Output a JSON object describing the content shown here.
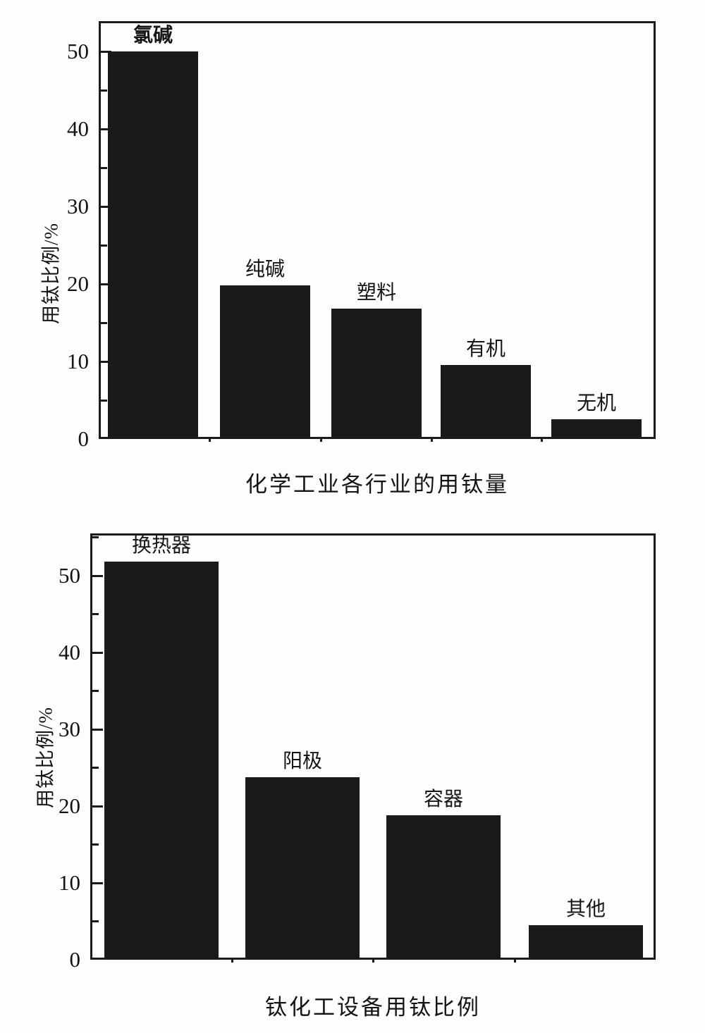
{
  "page": {
    "background": "#fdfdfb",
    "bar_color": "#1c1a18",
    "axis_color": "#1b1b1b"
  },
  "chart_data": [
    {
      "type": "bar",
      "title": "化学工业各行业的用钛量",
      "ylabel": "用钛比例/%",
      "xlabel": "",
      "categories": [
        "氯碱",
        "纯碱",
        "塑料",
        "有机",
        "无机"
      ],
      "values": [
        50,
        19.8,
        16.8,
        9.5,
        2.5
      ],
      "yticks": [
        0,
        10,
        20,
        30,
        40,
        50
      ],
      "yticks_minor": [
        5,
        15,
        25,
        35,
        45
      ],
      "ylim": [
        0,
        53.9
      ],
      "grid": false,
      "legend": "none",
      "bar_color": "#1c1a18",
      "bold_labels": [
        0
      ]
    },
    {
      "type": "bar",
      "title": "钛化工设备用钛比例",
      "ylabel": "用钛比例/%",
      "xlabel": "",
      "categories": [
        "换热器",
        "阳极",
        "容器",
        "其他"
      ],
      "values": [
        51.8,
        23.8,
        18.8,
        4.5
      ],
      "yticks": [
        0,
        10,
        20,
        30,
        40,
        50
      ],
      "yticks_minor": [
        5,
        15,
        25,
        35,
        45,
        55
      ],
      "ylim": [
        0,
        55.5
      ],
      "grid": false,
      "legend": "none",
      "bar_color": "#1c1a18",
      "bold_labels": []
    }
  ]
}
